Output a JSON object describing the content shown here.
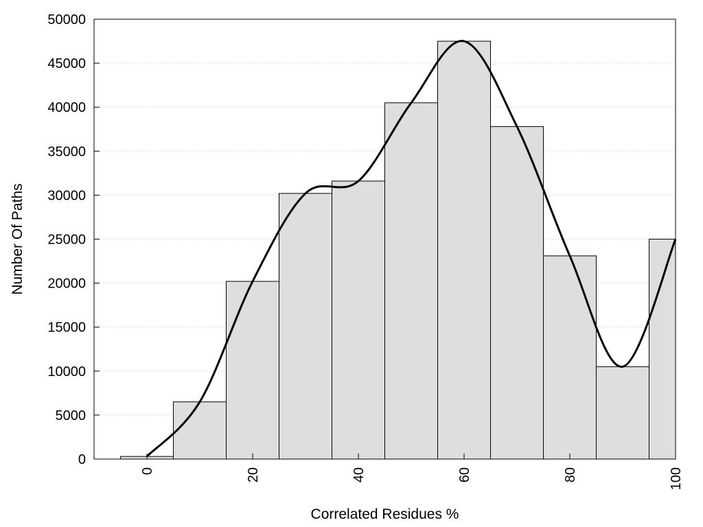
{
  "chart_data": {
    "type": "bar",
    "title": "",
    "xlabel": "Correlated Residues %",
    "ylabel": "Number Of Paths",
    "xlim": [
      -10,
      100
    ],
    "ylim": [
      0,
      50000
    ],
    "xticks": [
      0,
      20,
      40,
      60,
      80,
      100
    ],
    "yticks": [
      0,
      5000,
      10000,
      15000,
      20000,
      25000,
      30000,
      35000,
      40000,
      45000,
      50000
    ],
    "grid": "horizontal dotted",
    "legend": "none",
    "bin_width": 10,
    "categories": [
      0,
      10,
      20,
      30,
      40,
      50,
      60,
      70,
      80,
      90,
      100
    ],
    "values": [
      300,
      6500,
      20200,
      30200,
      31600,
      40500,
      47500,
      37800,
      23100,
      10500,
      25000
    ],
    "series": [
      {
        "type": "line",
        "x": [
          0,
          10,
          20,
          30,
          40,
          50,
          60,
          70,
          80,
          90,
          100
        ],
        "y": [
          300,
          6500,
          20200,
          30200,
          31600,
          40500,
          47500,
          37800,
          23100,
          10500,
          25000
        ]
      }
    ],
    "colors": {
      "bar_fill": "#dedede",
      "bar_stroke": "#000000",
      "line": "#000000",
      "grid": "#cccccc"
    }
  }
}
